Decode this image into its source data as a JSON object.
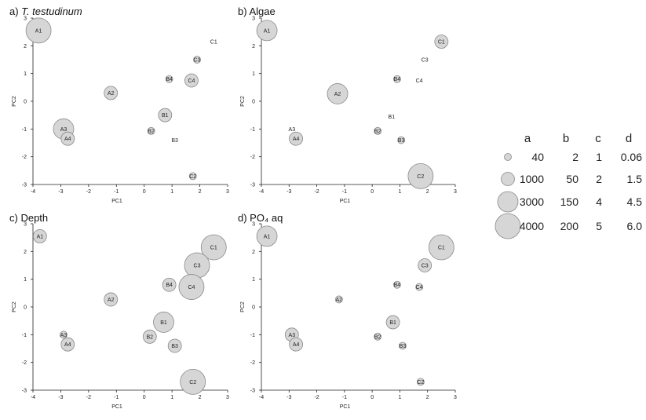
{
  "colors": {
    "bubble_fill": "#d6d6d6",
    "bubble_stroke": "#8a8a8a",
    "axis": "#222222"
  },
  "chart_data": [
    {
      "type": "scatter",
      "title_prefix": "a)",
      "title_main": "T. testudinum",
      "title_italic": true,
      "xlabel": "PC1",
      "ylabel": "PC2",
      "xlim": [
        -4,
        3
      ],
      "ylim": [
        -3,
        3
      ],
      "xticks": [
        "-4",
        "-3",
        "-2",
        "-1",
        "0",
        "1",
        "2",
        "3"
      ],
      "yticks": [
        "-3",
        "-2",
        "-1",
        "0",
        "1",
        "2",
        "3"
      ],
      "points": [
        {
          "label": "A1",
          "x": -3.8,
          "y": 2.55,
          "size": "4000"
        },
        {
          "label": "A2",
          "x": -1.2,
          "y": 0.3,
          "size": "1000"
        },
        {
          "label": "A3",
          "x": -2.9,
          "y": -1.0,
          "size": "3000"
        },
        {
          "label": "A4",
          "x": -2.75,
          "y": -1.35,
          "size": "1000"
        },
        {
          "label": "B1",
          "x": 0.75,
          "y": -0.5,
          "size": "1000"
        },
        {
          "label": "B2",
          "x": 0.25,
          "y": -1.07,
          "size": "40"
        },
        {
          "label": "B3",
          "x": 1.1,
          "y": -1.4,
          "size": "none"
        },
        {
          "label": "B4",
          "x": 0.9,
          "y": 0.8,
          "size": "40"
        },
        {
          "label": "C1",
          "x": 2.5,
          "y": 2.15,
          "size": "none"
        },
        {
          "label": "C2",
          "x": 1.75,
          "y": -2.7,
          "size": "40"
        },
        {
          "label": "C3",
          "x": 1.9,
          "y": 1.5,
          "size": "40"
        },
        {
          "label": "C4",
          "x": 1.7,
          "y": 0.75,
          "size": "1000"
        }
      ]
    },
    {
      "type": "scatter",
      "title_prefix": "b)",
      "title_main": "Algae",
      "title_italic": false,
      "xlabel": "PC1",
      "ylabel": "PC2",
      "xlim": [
        -4,
        3
      ],
      "ylim": [
        -3,
        3
      ],
      "xticks": [
        "-4",
        "-3",
        "-2",
        "-1",
        "0",
        "1",
        "2",
        "3"
      ],
      "yticks": [
        "-3",
        "-2",
        "-1",
        "0",
        "1",
        "2",
        "3"
      ],
      "points": [
        {
          "label": "A1",
          "x": -3.8,
          "y": 2.55,
          "size": "3000"
        },
        {
          "label": "A2",
          "x": -1.25,
          "y": 0.27,
          "size": "3000"
        },
        {
          "label": "A3",
          "x": -2.9,
          "y": -1.0,
          "size": "none"
        },
        {
          "label": "A4",
          "x": -2.75,
          "y": -1.35,
          "size": "1000"
        },
        {
          "label": "B1",
          "x": 0.7,
          "y": -0.55,
          "size": "none"
        },
        {
          "label": "B2",
          "x": 0.2,
          "y": -1.07,
          "size": "40"
        },
        {
          "label": "B3",
          "x": 1.05,
          "y": -1.4,
          "size": "40"
        },
        {
          "label": "B4",
          "x": 0.9,
          "y": 0.8,
          "size": "40"
        },
        {
          "label": "C1",
          "x": 2.5,
          "y": 2.15,
          "size": "1000"
        },
        {
          "label": "C2",
          "x": 1.75,
          "y": -2.7,
          "size": "4000"
        },
        {
          "label": "C3",
          "x": 1.9,
          "y": 1.5,
          "size": "none"
        },
        {
          "label": "C4",
          "x": 1.7,
          "y": 0.75,
          "size": "none"
        }
      ]
    },
    {
      "type": "scatter",
      "title_prefix": "c)",
      "title_main": "Depth",
      "title_italic": false,
      "xlabel": "PC1",
      "ylabel": "PC2",
      "xlim": [
        -4,
        3
      ],
      "ylim": [
        -3,
        3
      ],
      "xticks": [
        "-4",
        "-3",
        "-2",
        "-1",
        "0",
        "1",
        "2",
        "3"
      ],
      "yticks": [
        "-3",
        "-2",
        "-1",
        "0",
        "1",
        "2",
        "3"
      ],
      "points": [
        {
          "label": "A1",
          "x": -3.75,
          "y": 2.55,
          "size": "1000"
        },
        {
          "label": "A2",
          "x": -1.2,
          "y": 0.27,
          "size": "1000"
        },
        {
          "label": "A3",
          "x": -2.9,
          "y": -1.0,
          "size": "40"
        },
        {
          "label": "A4",
          "x": -2.75,
          "y": -1.35,
          "size": "1000"
        },
        {
          "label": "B1",
          "x": 0.7,
          "y": -0.55,
          "size": "3000"
        },
        {
          "label": "B2",
          "x": 0.2,
          "y": -1.07,
          "size": "1000"
        },
        {
          "label": "B3",
          "x": 1.1,
          "y": -1.4,
          "size": "1000"
        },
        {
          "label": "B4",
          "x": 0.9,
          "y": 0.8,
          "size": "1000"
        },
        {
          "label": "C1",
          "x": 2.5,
          "y": 2.15,
          "size": "4000"
        },
        {
          "label": "C2",
          "x": 1.75,
          "y": -2.7,
          "size": "4000"
        },
        {
          "label": "C3",
          "x": 1.9,
          "y": 1.5,
          "size": "4000"
        },
        {
          "label": "C4",
          "x": 1.7,
          "y": 0.72,
          "size": "4000"
        }
      ]
    },
    {
      "type": "scatter",
      "title_prefix": "d)",
      "title_main": "PO₄ aq",
      "title_italic": false,
      "xlabel": "PC1",
      "ylabel": "PC2",
      "xlim": [
        -4,
        3
      ],
      "ylim": [
        -3,
        3
      ],
      "xticks": [
        "-4",
        "-3",
        "-2",
        "-1",
        "0",
        "1",
        "2",
        "3"
      ],
      "yticks": [
        "-3",
        "-2",
        "-1",
        "0",
        "1",
        "2",
        "3"
      ],
      "points": [
        {
          "label": "A1",
          "x": -3.8,
          "y": 2.55,
          "size": "3000"
        },
        {
          "label": "A2",
          "x": -1.2,
          "y": 0.27,
          "size": "40"
        },
        {
          "label": "A3",
          "x": -2.9,
          "y": -1.0,
          "size": "1000"
        },
        {
          "label": "A4",
          "x": -2.75,
          "y": -1.35,
          "size": "1000"
        },
        {
          "label": "B1",
          "x": 0.75,
          "y": -0.55,
          "size": "1000"
        },
        {
          "label": "B2",
          "x": 0.2,
          "y": -1.07,
          "size": "40"
        },
        {
          "label": "B3",
          "x": 1.1,
          "y": -1.4,
          "size": "40"
        },
        {
          "label": "B4",
          "x": 0.9,
          "y": 0.8,
          "size": "40"
        },
        {
          "label": "C1",
          "x": 2.5,
          "y": 2.15,
          "size": "4000"
        },
        {
          "label": "C2",
          "x": 1.75,
          "y": -2.7,
          "size": "40"
        },
        {
          "label": "C3",
          "x": 1.9,
          "y": 1.5,
          "size": "1000"
        },
        {
          "label": "C4",
          "x": 1.7,
          "y": 0.72,
          "size": "40"
        }
      ]
    }
  ],
  "legend": {
    "headers": [
      "a",
      "b",
      "c",
      "d"
    ],
    "rows": [
      {
        "size": "40",
        "values": [
          "40",
          "2",
          "1",
          "0.06"
        ]
      },
      {
        "size": "1000",
        "values": [
          "1000",
          "50",
          "2",
          "1.5"
        ]
      },
      {
        "size": "3000",
        "values": [
          "3000",
          "150",
          "4",
          "4.5"
        ]
      },
      {
        "size": "4000",
        "values": [
          "4000",
          "200",
          "5",
          "6.0"
        ]
      }
    ]
  }
}
